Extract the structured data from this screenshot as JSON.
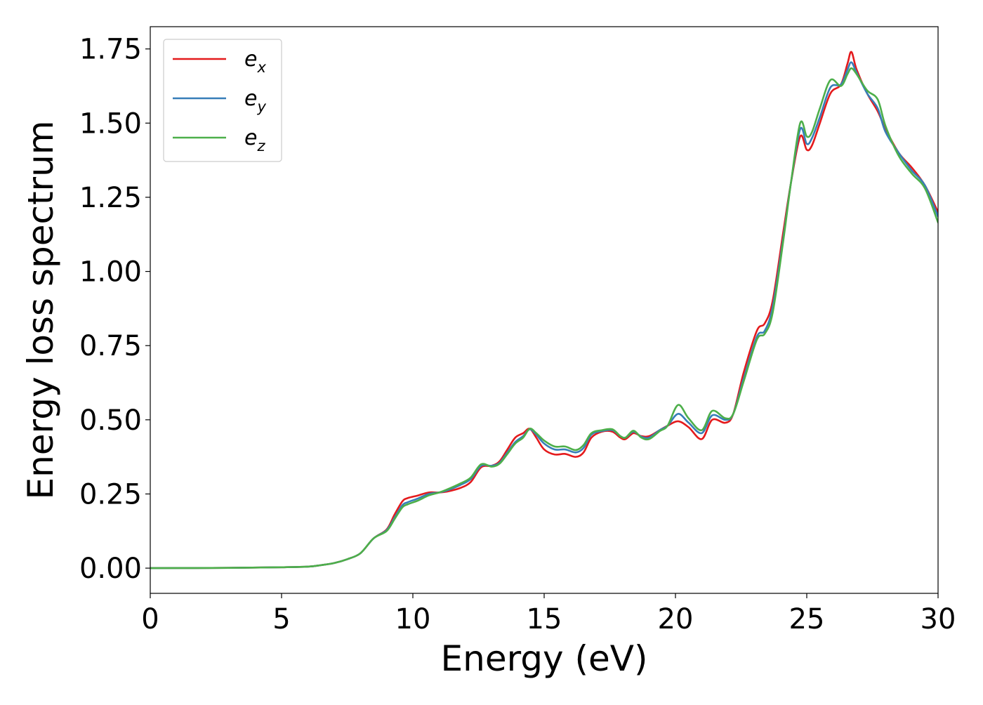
{
  "chart_data": {
    "type": "line",
    "title": "",
    "xlabel": "Energy (eV)",
    "ylabel": "Energy loss spectrum",
    "xlim": [
      0,
      30
    ],
    "ylim": [
      -0.085,
      1.825
    ],
    "xticks": [
      "0",
      "5",
      "10",
      "15",
      "20",
      "25",
      "30"
    ],
    "yticks": [
      "0.00",
      "0.25",
      "0.50",
      "0.75",
      "1.00",
      "1.25",
      "1.50",
      "1.75"
    ],
    "grid": false,
    "legend_position": "top-left",
    "series": [
      {
        "name": "e_x",
        "label_base": "e",
        "label_sub": "x",
        "color": "#e41a1c",
        "points": [
          [
            0,
            0.0
          ],
          [
            3,
            0.001
          ],
          [
            5,
            0.003
          ],
          [
            6,
            0.005
          ],
          [
            6.5,
            0.01
          ],
          [
            7,
            0.017
          ],
          [
            7.5,
            0.03
          ],
          [
            8,
            0.05
          ],
          [
            8.5,
            0.1
          ],
          [
            9,
            0.13
          ],
          [
            9.3,
            0.18
          ],
          [
            9.6,
            0.225
          ],
          [
            9.8,
            0.236
          ],
          [
            10.2,
            0.245
          ],
          [
            10.6,
            0.255
          ],
          [
            11,
            0.255
          ],
          [
            11.3,
            0.258
          ],
          [
            11.8,
            0.27
          ],
          [
            12.2,
            0.29
          ],
          [
            12.6,
            0.34
          ],
          [
            13,
            0.345
          ],
          [
            13.3,
            0.36
          ],
          [
            13.6,
            0.4
          ],
          [
            13.9,
            0.44
          ],
          [
            14.2,
            0.455
          ],
          [
            14.45,
            0.47
          ],
          [
            14.7,
            0.44
          ],
          [
            15,
            0.4
          ],
          [
            15.4,
            0.383
          ],
          [
            15.8,
            0.385
          ],
          [
            16.2,
            0.375
          ],
          [
            16.5,
            0.39
          ],
          [
            16.8,
            0.44
          ],
          [
            17.2,
            0.46
          ],
          [
            17.6,
            0.46
          ],
          [
            17.9,
            0.44
          ],
          [
            18.1,
            0.435
          ],
          [
            18.4,
            0.455
          ],
          [
            18.7,
            0.445
          ],
          [
            19,
            0.445
          ],
          [
            19.4,
            0.465
          ],
          [
            19.7,
            0.48
          ],
          [
            20.1,
            0.495
          ],
          [
            20.5,
            0.475
          ],
          [
            21,
            0.435
          ],
          [
            21.4,
            0.5
          ],
          [
            21.9,
            0.49
          ],
          [
            22.2,
            0.52
          ],
          [
            22.6,
            0.66
          ],
          [
            23.1,
            0.8
          ],
          [
            23.4,
            0.825
          ],
          [
            23.7,
            0.9
          ],
          [
            24.1,
            1.13
          ],
          [
            24.4,
            1.3
          ],
          [
            24.75,
            1.455
          ],
          [
            25,
            1.41
          ],
          [
            25.2,
            1.425
          ],
          [
            25.5,
            1.5
          ],
          [
            25.9,
            1.6
          ],
          [
            26.3,
            1.63
          ],
          [
            26.55,
            1.7
          ],
          [
            26.7,
            1.74
          ],
          [
            26.9,
            1.68
          ],
          [
            27.3,
            1.6
          ],
          [
            27.7,
            1.54
          ],
          [
            28,
            1.48
          ],
          [
            28.5,
            1.4
          ],
          [
            29,
            1.35
          ],
          [
            29.5,
            1.29
          ],
          [
            30,
            1.2
          ]
        ]
      },
      {
        "name": "e_y",
        "label_base": "e",
        "label_sub": "y",
        "color": "#377eb8",
        "points": [
          [
            0,
            0.0
          ],
          [
            3,
            0.001
          ],
          [
            5,
            0.003
          ],
          [
            6,
            0.005
          ],
          [
            6.5,
            0.01
          ],
          [
            7,
            0.017
          ],
          [
            7.5,
            0.03
          ],
          [
            8,
            0.05
          ],
          [
            8.5,
            0.1
          ],
          [
            9,
            0.128
          ],
          [
            9.3,
            0.17
          ],
          [
            9.6,
            0.212
          ],
          [
            9.8,
            0.222
          ],
          [
            10.2,
            0.235
          ],
          [
            10.6,
            0.25
          ],
          [
            11,
            0.255
          ],
          [
            11.3,
            0.262
          ],
          [
            11.8,
            0.28
          ],
          [
            12.2,
            0.3
          ],
          [
            12.6,
            0.345
          ],
          [
            13,
            0.345
          ],
          [
            13.3,
            0.355
          ],
          [
            13.6,
            0.39
          ],
          [
            13.9,
            0.425
          ],
          [
            14.2,
            0.445
          ],
          [
            14.45,
            0.468
          ],
          [
            14.7,
            0.45
          ],
          [
            15,
            0.42
          ],
          [
            15.4,
            0.4
          ],
          [
            15.8,
            0.4
          ],
          [
            16.2,
            0.39
          ],
          [
            16.5,
            0.405
          ],
          [
            16.8,
            0.45
          ],
          [
            17.2,
            0.462
          ],
          [
            17.6,
            0.465
          ],
          [
            17.9,
            0.445
          ],
          [
            18.1,
            0.44
          ],
          [
            18.4,
            0.46
          ],
          [
            18.7,
            0.443
          ],
          [
            19,
            0.44
          ],
          [
            19.4,
            0.465
          ],
          [
            19.7,
            0.48
          ],
          [
            20.1,
            0.52
          ],
          [
            20.5,
            0.49
          ],
          [
            21,
            0.455
          ],
          [
            21.4,
            0.515
          ],
          [
            21.9,
            0.5
          ],
          [
            22.2,
            0.52
          ],
          [
            22.6,
            0.64
          ],
          [
            23.1,
            0.78
          ],
          [
            23.4,
            0.8
          ],
          [
            23.7,
            0.88
          ],
          [
            24.1,
            1.11
          ],
          [
            24.4,
            1.3
          ],
          [
            24.75,
            1.48
          ],
          [
            25,
            1.43
          ],
          [
            25.2,
            1.45
          ],
          [
            25.5,
            1.52
          ],
          [
            25.9,
            1.62
          ],
          [
            26.3,
            1.63
          ],
          [
            26.55,
            1.68
          ],
          [
            26.7,
            1.705
          ],
          [
            26.9,
            1.67
          ],
          [
            27.3,
            1.6
          ],
          [
            27.7,
            1.55
          ],
          [
            28,
            1.47
          ],
          [
            28.5,
            1.4
          ],
          [
            29,
            1.34
          ],
          [
            29.5,
            1.29
          ],
          [
            30,
            1.185
          ]
        ]
      },
      {
        "name": "e_z",
        "label_base": "e",
        "label_sub": "z",
        "color": "#4daf4a",
        "points": [
          [
            0,
            0.0
          ],
          [
            3,
            0.001
          ],
          [
            5,
            0.003
          ],
          [
            6,
            0.005
          ],
          [
            6.5,
            0.01
          ],
          [
            7,
            0.017
          ],
          [
            7.5,
            0.03
          ],
          [
            8,
            0.05
          ],
          [
            8.5,
            0.1
          ],
          [
            9,
            0.125
          ],
          [
            9.3,
            0.165
          ],
          [
            9.6,
            0.205
          ],
          [
            9.8,
            0.215
          ],
          [
            10.2,
            0.228
          ],
          [
            10.6,
            0.245
          ],
          [
            11,
            0.255
          ],
          [
            11.3,
            0.265
          ],
          [
            11.8,
            0.285
          ],
          [
            12.2,
            0.305
          ],
          [
            12.6,
            0.35
          ],
          [
            13,
            0.342
          ],
          [
            13.3,
            0.352
          ],
          [
            13.6,
            0.385
          ],
          [
            13.9,
            0.42
          ],
          [
            14.2,
            0.44
          ],
          [
            14.45,
            0.47
          ],
          [
            14.7,
            0.455
          ],
          [
            15,
            0.43
          ],
          [
            15.4,
            0.41
          ],
          [
            15.8,
            0.41
          ],
          [
            16.2,
            0.398
          ],
          [
            16.5,
            0.415
          ],
          [
            16.8,
            0.455
          ],
          [
            17.2,
            0.465
          ],
          [
            17.6,
            0.468
          ],
          [
            17.9,
            0.445
          ],
          [
            18.1,
            0.44
          ],
          [
            18.4,
            0.463
          ],
          [
            18.7,
            0.44
          ],
          [
            19,
            0.435
          ],
          [
            19.4,
            0.462
          ],
          [
            19.7,
            0.48
          ],
          [
            20.1,
            0.55
          ],
          [
            20.5,
            0.505
          ],
          [
            21,
            0.465
          ],
          [
            21.4,
            0.53
          ],
          [
            21.9,
            0.505
          ],
          [
            22.2,
            0.52
          ],
          [
            22.6,
            0.63
          ],
          [
            23.1,
            0.77
          ],
          [
            23.4,
            0.79
          ],
          [
            23.7,
            0.86
          ],
          [
            24.1,
            1.1
          ],
          [
            24.4,
            1.3
          ],
          [
            24.75,
            1.5
          ],
          [
            25,
            1.455
          ],
          [
            25.2,
            1.47
          ],
          [
            25.5,
            1.55
          ],
          [
            25.9,
            1.645
          ],
          [
            26.3,
            1.625
          ],
          [
            26.55,
            1.665
          ],
          [
            26.7,
            1.685
          ],
          [
            26.9,
            1.665
          ],
          [
            27.3,
            1.61
          ],
          [
            27.7,
            1.58
          ],
          [
            28,
            1.49
          ],
          [
            28.5,
            1.39
          ],
          [
            29,
            1.33
          ],
          [
            29.5,
            1.28
          ],
          [
            30,
            1.165
          ]
        ]
      }
    ]
  }
}
